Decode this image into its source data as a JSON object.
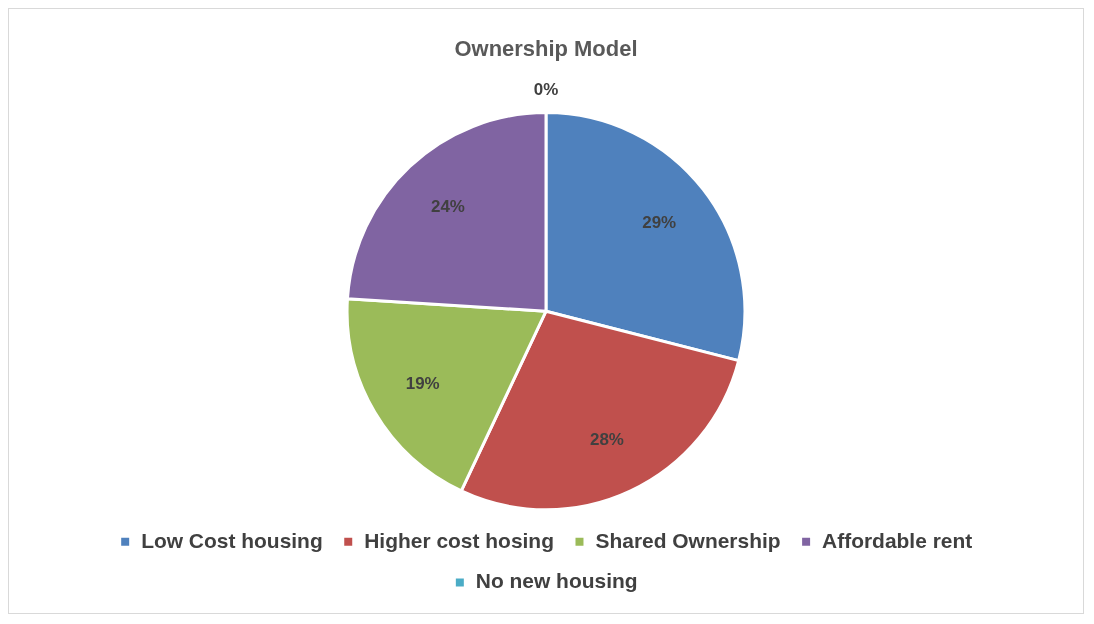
{
  "chart_data": {
    "type": "pie",
    "title": "Ownership Model",
    "categories": [
      "Low Cost housing",
      "Higher cost hosing",
      "Shared Ownership",
      "Affordable rent",
      "No new housing"
    ],
    "values": [
      29,
      28,
      19,
      24,
      0
    ],
    "value_labels": [
      "29%",
      "28%",
      "19%",
      "24%",
      "0%"
    ],
    "colors": [
      "#4f81bd",
      "#c0504d",
      "#9bbb59",
      "#8064a2",
      "#4bacc6"
    ],
    "legend": "bottom"
  }
}
